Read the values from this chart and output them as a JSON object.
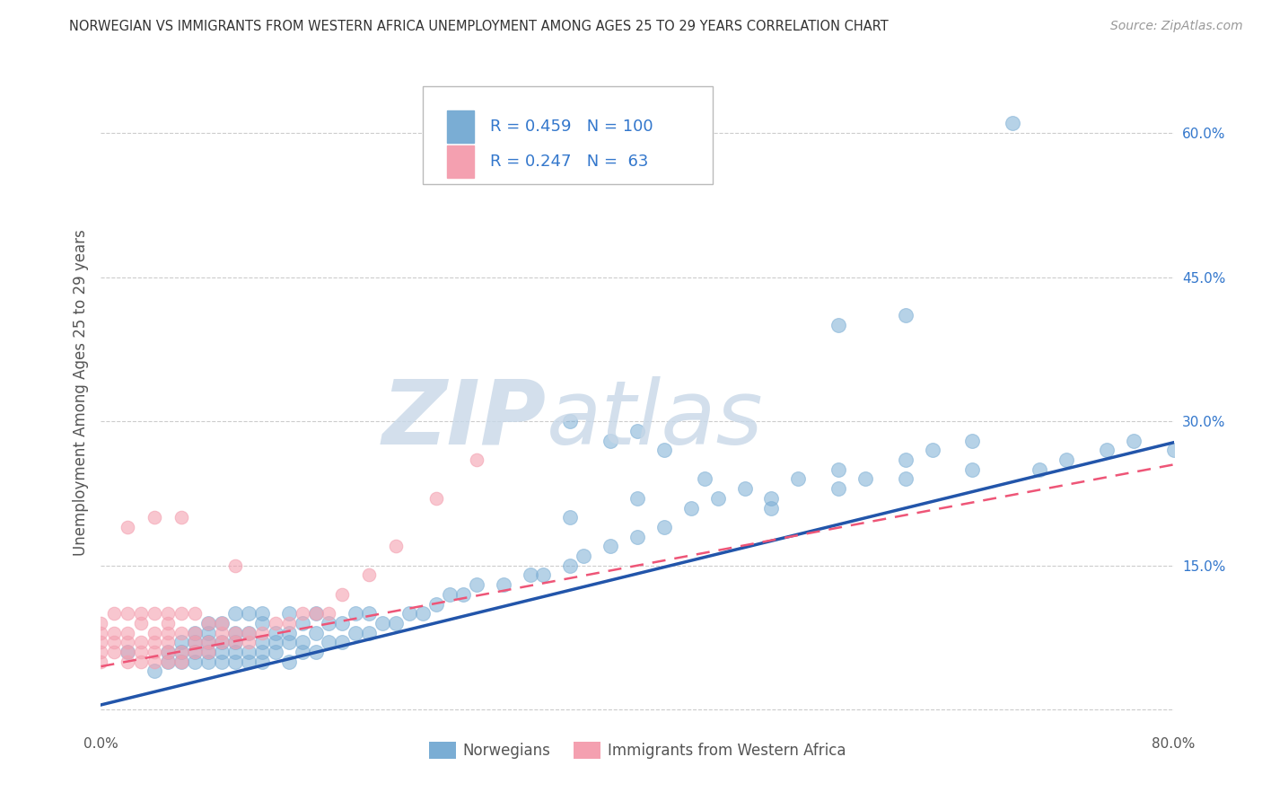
{
  "title": "NORWEGIAN VS IMMIGRANTS FROM WESTERN AFRICA UNEMPLOYMENT AMONG AGES 25 TO 29 YEARS CORRELATION CHART",
  "source": "Source: ZipAtlas.com",
  "ylabel": "Unemployment Among Ages 25 to 29 years",
  "xlim": [
    0.0,
    0.8
  ],
  "ylim": [
    -0.02,
    0.68
  ],
  "norwegian_R": 0.459,
  "norwegian_N": 100,
  "immigrant_R": 0.247,
  "immigrant_N": 63,
  "norwegian_color": "#7aadd4",
  "immigrant_color": "#f4a0b0",
  "norwegian_line_color": "#2255aa",
  "immigrant_line_color": "#ee5577",
  "background_color": "#ffffff",
  "legend_label_norwegian": "Norwegians",
  "legend_label_immigrant": "Immigrants from Western Africa",
  "nor_line_x0": 0.0,
  "nor_line_y0": 0.005,
  "nor_line_x1": 0.8,
  "nor_line_y1": 0.278,
  "imm_line_x0": 0.0,
  "imm_line_y0": 0.045,
  "imm_line_x1": 0.8,
  "imm_line_y1": 0.255,
  "norwegian_x": [
    0.02,
    0.04,
    0.05,
    0.05,
    0.06,
    0.06,
    0.06,
    0.07,
    0.07,
    0.07,
    0.07,
    0.08,
    0.08,
    0.08,
    0.08,
    0.08,
    0.09,
    0.09,
    0.09,
    0.09,
    0.1,
    0.1,
    0.1,
    0.1,
    0.1,
    0.11,
    0.11,
    0.11,
    0.11,
    0.12,
    0.12,
    0.12,
    0.12,
    0.12,
    0.13,
    0.13,
    0.13,
    0.14,
    0.14,
    0.14,
    0.14,
    0.15,
    0.15,
    0.15,
    0.16,
    0.16,
    0.16,
    0.17,
    0.17,
    0.18,
    0.18,
    0.19,
    0.19,
    0.2,
    0.2,
    0.21,
    0.22,
    0.23,
    0.24,
    0.25,
    0.26,
    0.27,
    0.28,
    0.3,
    0.32,
    0.33,
    0.35,
    0.36,
    0.38,
    0.4,
    0.42,
    0.44,
    0.46,
    0.48,
    0.5,
    0.52,
    0.55,
    0.57,
    0.6,
    0.62,
    0.65,
    0.68,
    0.7,
    0.72,
    0.75,
    0.77,
    0.8,
    0.35,
    0.4,
    0.45,
    0.5,
    0.55,
    0.6,
    0.65,
    0.55,
    0.6,
    0.4,
    0.35,
    0.38,
    0.42
  ],
  "norwegian_y": [
    0.06,
    0.04,
    0.05,
    0.06,
    0.05,
    0.06,
    0.07,
    0.05,
    0.06,
    0.07,
    0.08,
    0.05,
    0.06,
    0.07,
    0.08,
    0.09,
    0.05,
    0.06,
    0.07,
    0.09,
    0.05,
    0.06,
    0.07,
    0.08,
    0.1,
    0.05,
    0.06,
    0.08,
    0.1,
    0.05,
    0.06,
    0.07,
    0.09,
    0.1,
    0.06,
    0.07,
    0.08,
    0.05,
    0.07,
    0.08,
    0.1,
    0.06,
    0.07,
    0.09,
    0.06,
    0.08,
    0.1,
    0.07,
    0.09,
    0.07,
    0.09,
    0.08,
    0.1,
    0.08,
    0.1,
    0.09,
    0.09,
    0.1,
    0.1,
    0.11,
    0.12,
    0.12,
    0.13,
    0.13,
    0.14,
    0.14,
    0.15,
    0.16,
    0.17,
    0.18,
    0.19,
    0.21,
    0.22,
    0.23,
    0.22,
    0.24,
    0.25,
    0.24,
    0.26,
    0.27,
    0.28,
    0.61,
    0.25,
    0.26,
    0.27,
    0.28,
    0.27,
    0.2,
    0.22,
    0.24,
    0.21,
    0.23,
    0.24,
    0.25,
    0.4,
    0.41,
    0.29,
    0.3,
    0.28,
    0.27
  ],
  "immigrant_x": [
    0.0,
    0.0,
    0.0,
    0.0,
    0.0,
    0.01,
    0.01,
    0.01,
    0.01,
    0.02,
    0.02,
    0.02,
    0.02,
    0.02,
    0.02,
    0.03,
    0.03,
    0.03,
    0.03,
    0.03,
    0.04,
    0.04,
    0.04,
    0.04,
    0.04,
    0.04,
    0.05,
    0.05,
    0.05,
    0.05,
    0.05,
    0.05,
    0.06,
    0.06,
    0.06,
    0.06,
    0.06,
    0.07,
    0.07,
    0.07,
    0.07,
    0.08,
    0.08,
    0.08,
    0.09,
    0.09,
    0.09,
    0.1,
    0.1,
    0.1,
    0.11,
    0.11,
    0.12,
    0.13,
    0.14,
    0.15,
    0.16,
    0.17,
    0.18,
    0.2,
    0.22,
    0.25,
    0.28
  ],
  "immigrant_y": [
    0.05,
    0.06,
    0.07,
    0.08,
    0.09,
    0.06,
    0.07,
    0.08,
    0.1,
    0.05,
    0.06,
    0.07,
    0.08,
    0.1,
    0.19,
    0.05,
    0.06,
    0.07,
    0.09,
    0.1,
    0.05,
    0.06,
    0.07,
    0.08,
    0.1,
    0.2,
    0.05,
    0.06,
    0.07,
    0.08,
    0.09,
    0.1,
    0.05,
    0.06,
    0.08,
    0.1,
    0.2,
    0.06,
    0.07,
    0.08,
    0.1,
    0.06,
    0.07,
    0.09,
    0.07,
    0.08,
    0.09,
    0.07,
    0.08,
    0.15,
    0.07,
    0.08,
    0.08,
    0.09,
    0.09,
    0.1,
    0.1,
    0.1,
    0.12,
    0.14,
    0.17,
    0.22,
    0.26
  ]
}
